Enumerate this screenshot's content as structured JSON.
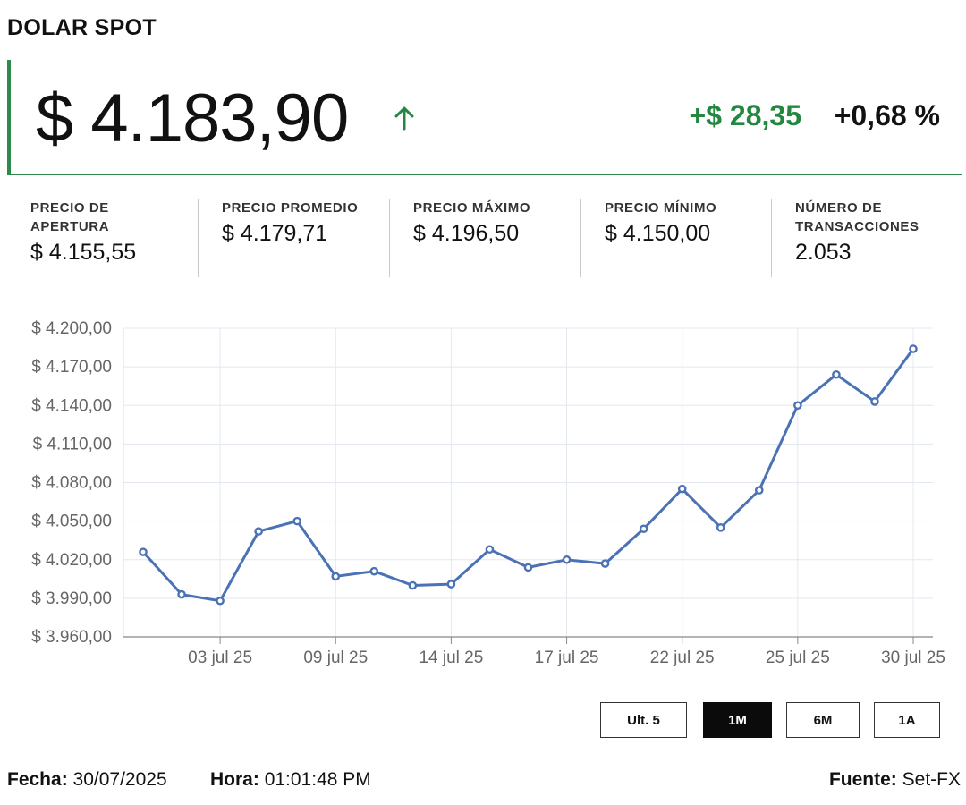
{
  "header": {
    "title": "DOLAR SPOT"
  },
  "price": {
    "current": "$ 4.183,90",
    "direction_icon": "arrow-up-icon",
    "change_abs": "+$ 28,35",
    "change_pct": "+0,68 %"
  },
  "colors": {
    "positive": "#23873f",
    "line": "#4a72b5",
    "border": "#2d8a4a"
  },
  "stats": [
    {
      "label": "PRECIO DE APERTURA",
      "value": "$ 4.155,55"
    },
    {
      "label": "PRECIO PROMEDIO",
      "value": "$ 4.179,71"
    },
    {
      "label": "PRECIO MÁXIMO",
      "value": "$ 4.196,50"
    },
    {
      "label": "PRECIO MÍNIMO",
      "value": "$ 4.150,00"
    },
    {
      "label": "NÚMERO DE TRANSACCIONES",
      "value": "2.053"
    }
  ],
  "chart_data": {
    "type": "line",
    "title": "",
    "xlabel": "",
    "ylabel": "",
    "ylim": [
      3960,
      4200
    ],
    "y_ticks": [
      "$ 4.200,00",
      "$ 4.170,00",
      "$ 4.140,00",
      "$ 4.110,00",
      "$ 4.080,00",
      "$ 4.050,00",
      "$ 4.020,00",
      "$ 3.990,00",
      "$ 3.960,00"
    ],
    "y_tick_values": [
      4200,
      4170,
      4140,
      4110,
      4080,
      4050,
      4020,
      3990,
      3960
    ],
    "x_ticks": [
      "03 jul 25",
      "09 jul 25",
      "14 jul 25",
      "17 jul 25",
      "22 jul 25",
      "25 jul 25",
      "30 jul 25"
    ],
    "x_tick_index": [
      2,
      5,
      8,
      11,
      14,
      17,
      20
    ],
    "grid": true,
    "series": [
      {
        "values": [
          4026,
          3993,
          3988,
          4042,
          4050,
          4007,
          4011,
          4000,
          4001,
          4028,
          4014,
          4020,
          4017,
          4044,
          4075,
          4045,
          4074,
          4140,
          4164,
          4143,
          4184
        ]
      }
    ]
  },
  "range_buttons": [
    {
      "label": "Ult. 5",
      "active": false
    },
    {
      "label": "1M",
      "active": true
    },
    {
      "label": "6M",
      "active": false
    },
    {
      "label": "1A",
      "active": false
    }
  ],
  "footer": {
    "date_label": "Fecha:",
    "date_value": "30/07/2025",
    "time_label": "Hora:",
    "time_value": "01:01:48 PM",
    "source_label": "Fuente:",
    "source_value": "Set-FX"
  }
}
